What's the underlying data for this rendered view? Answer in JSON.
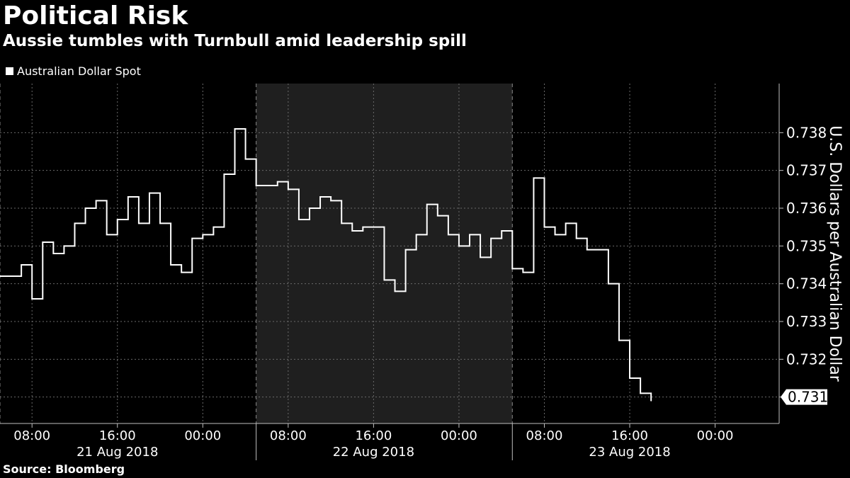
{
  "title": "Political Risk",
  "subtitle": "Aussie tumbles with Turnbull amid leadership spill",
  "source": "Source: Bloomberg",
  "chart_data": {
    "type": "line",
    "series": [
      {
        "name": "Australian Dollar Spot",
        "color": "#ffffff",
        "x_hours": [
          0,
          1,
          2,
          3,
          4,
          5,
          6,
          7,
          8,
          9,
          10,
          11,
          12,
          13,
          14,
          15,
          16,
          17,
          18,
          19,
          20,
          21,
          22,
          23,
          24,
          25,
          26,
          27,
          28,
          29,
          30,
          31,
          32,
          33,
          34,
          35,
          36,
          37,
          38,
          39,
          40,
          41,
          42,
          43,
          44,
          45,
          46,
          47,
          48,
          49,
          50,
          51,
          52,
          53,
          54,
          55,
          56,
          57,
          58,
          59,
          60,
          61,
          62,
          63,
          64,
          65,
          66
        ],
        "values": [
          0.7342,
          0.7342,
          0.7345,
          0.7336,
          0.7351,
          0.7348,
          0.735,
          0.7356,
          0.736,
          0.7362,
          0.7353,
          0.7357,
          0.7363,
          0.7356,
          0.7364,
          0.7356,
          0.7345,
          0.7343,
          0.7352,
          0.7353,
          0.7355,
          0.7369,
          0.7381,
          0.7373,
          0.7366,
          0.7366,
          0.7367,
          0.7365,
          0.7357,
          0.736,
          0.7363,
          0.7362,
          0.7356,
          0.7354,
          0.7355,
          0.7355,
          0.7341,
          0.7338,
          0.7349,
          0.7353,
          0.7361,
          0.7358,
          0.7353,
          0.735,
          0.7353,
          0.7347,
          0.7352,
          0.7354,
          0.7344,
          0.7343,
          0.7368,
          0.7355,
          0.7353,
          0.7356,
          0.7352,
          0.7349,
          0.7349,
          0.734,
          0.7325,
          0.7315,
          0.7311,
          0.7309,
          null,
          null,
          null,
          null,
          null
        ],
        "last_value_label": "0.731"
      }
    ],
    "x_ticks": [
      "08:00",
      "16:00",
      "00:00",
      "08:00",
      "16:00",
      "00:00",
      "08:00",
      "16:00",
      "00:00"
    ],
    "x_tick_hours": [
      3,
      11,
      19,
      27,
      35,
      43,
      51,
      59,
      67
    ],
    "x_dates": [
      "21 Aug 2018",
      "22 Aug 2018",
      "23 Aug 2018"
    ],
    "x_date_centers_hours": [
      11,
      35,
      59
    ],
    "y_ticks": [
      "0.731",
      "0.732",
      "0.733",
      "0.734",
      "0.735",
      "0.736",
      "0.737",
      "0.738"
    ],
    "ylim": [
      0.7303,
      0.7393
    ],
    "xlim_hours": [
      0,
      73
    ],
    "shaded_region_hours": [
      24,
      48
    ],
    "ylabel": "U.S. Dollars per Australian Dollar",
    "grid": true,
    "legend_position": "top-left"
  }
}
